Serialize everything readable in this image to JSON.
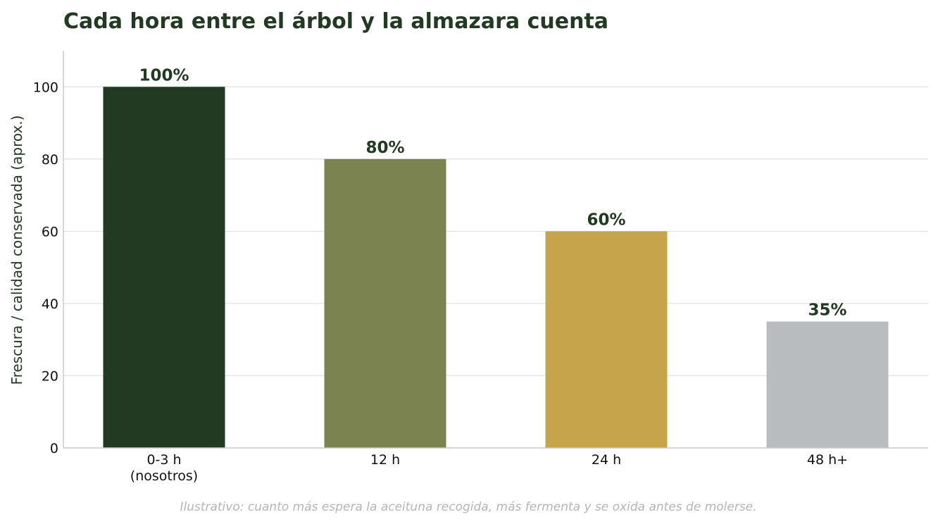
{
  "chart_data": {
    "type": "bar",
    "title": "Cada hora entre el árbol y la almazara cuenta",
    "ylabel": "Frescura / calidad conservada (aprox.)",
    "xlabel": "",
    "categories": [
      [
        "0-3 h",
        "(nosotros)"
      ],
      [
        "12 h"
      ],
      [
        "24 h"
      ],
      [
        "48 h+"
      ]
    ],
    "values": [
      100,
      80,
      60,
      35
    ],
    "data_labels": [
      "100%",
      "80%",
      "60%",
      "35%"
    ],
    "bar_colors": [
      "#223a22",
      "#7b8450",
      "#c6a44b",
      "#b9bcbf"
    ],
    "yticks": [
      0,
      20,
      40,
      60,
      80,
      100
    ],
    "ylim": [
      0,
      110
    ],
    "grid": "horizontal",
    "footnote": "Ilustrativo: cuanto más espera la aceituna recogida, más fermenta y se oxida antes de molerse."
  },
  "colors": {
    "title": "#223a22",
    "label": "#223a22",
    "grid": "#e3e3e3",
    "axis": "#c8c8c8"
  }
}
